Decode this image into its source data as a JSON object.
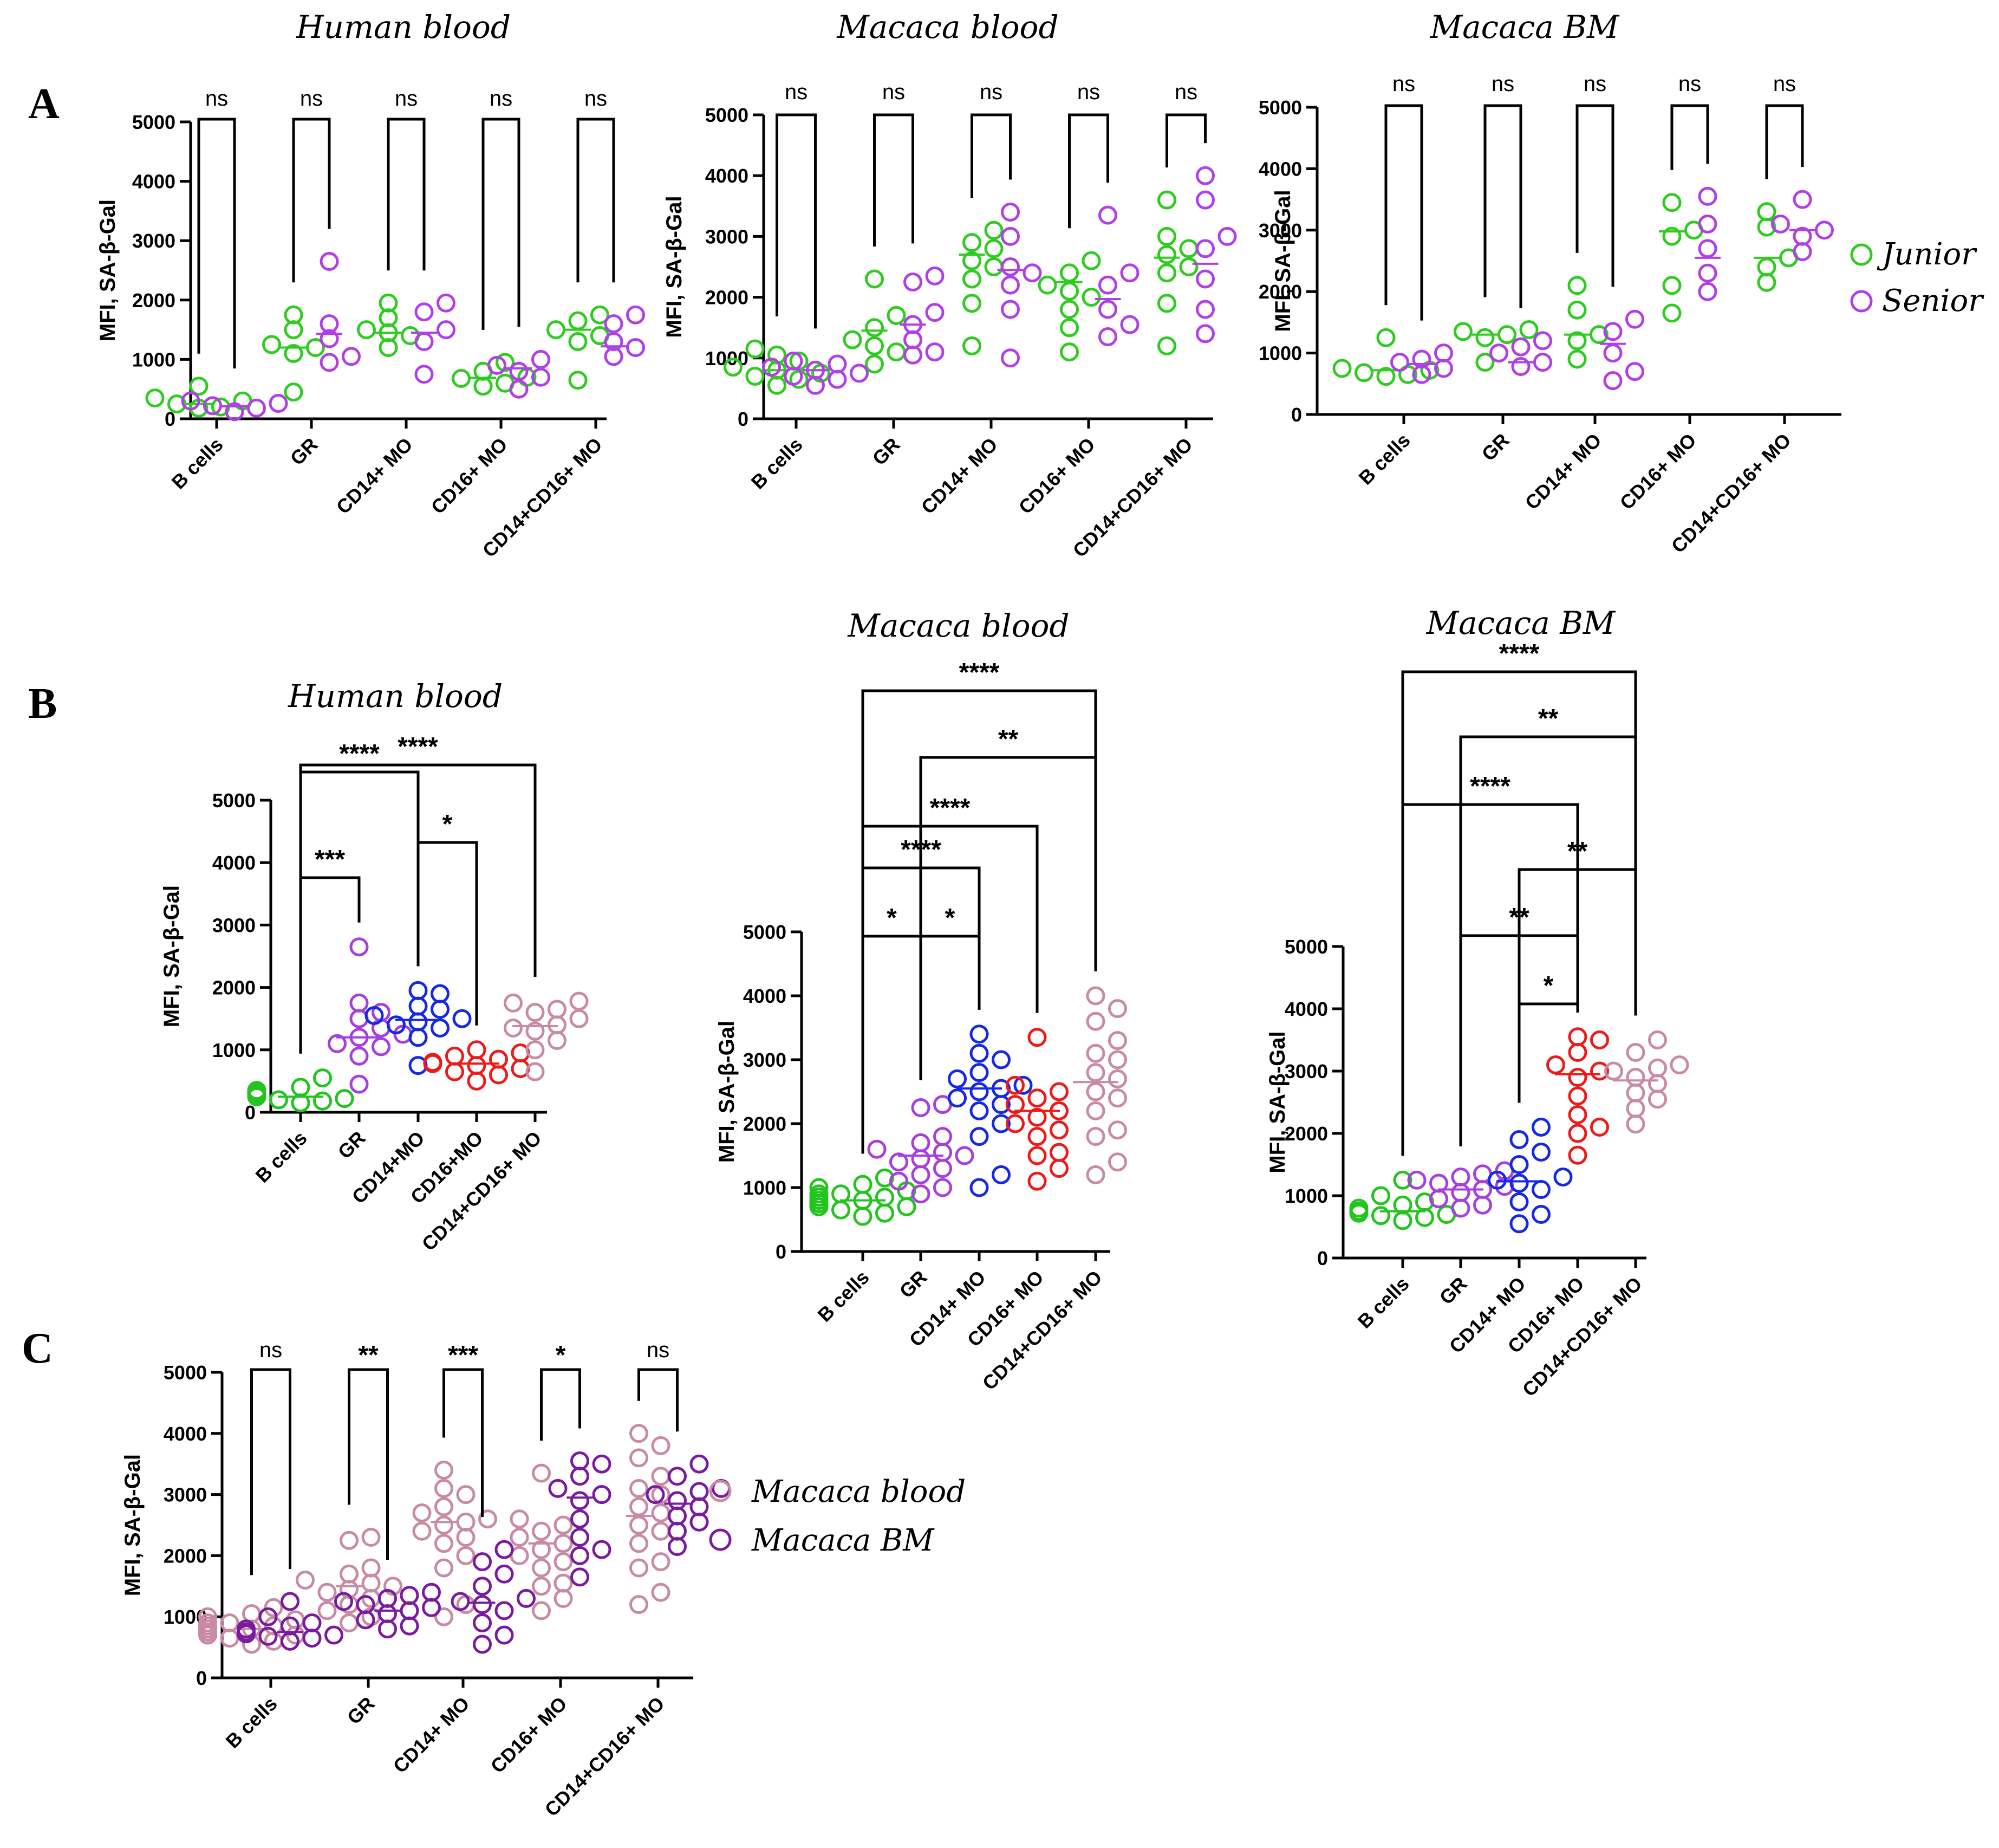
{
  "colors": {
    "junior": "#2ecc1f",
    "senior": "#b23ee8",
    "bcells": "#22c41e",
    "gr": "#a63ee0",
    "cd14": "#1428e6",
    "cd16": "#ee1a1a",
    "cd14cd16": "#c98aa3",
    "macaca_blood": "#c98aa3",
    "macaca_bm": "#7a1aa0"
  },
  "panel_labels": [
    "A",
    "B",
    "C"
  ],
  "legend_A": {
    "junior": "Junior",
    "senior": "Senior"
  },
  "legend_C": {
    "blood": "Macaca blood",
    "bm": "Macaca BM"
  },
  "chart_data": [
    {
      "id": "A1",
      "panel": "A",
      "type": "scatter",
      "title": "Human blood",
      "ylabel": "MFI, SA-β-Gal",
      "ylim": [
        0,
        5000
      ],
      "yticks": [
        0,
        1000,
        2000,
        3000,
        4000,
        5000
      ],
      "categories": [
        "B cells",
        "GR",
        "CD14+ MO",
        "CD16+ MO",
        "CD14+CD16+ MO"
      ],
      "groups": [
        "Junior",
        "Senior"
      ],
      "series": [
        {
          "name": "Junior",
          "values": [
            [
              200,
              350,
              550,
              180,
              250,
              300
            ],
            [
              450,
              1100,
              1250,
              1500,
              1750,
              1200
            ],
            [
              1200,
              1400,
              1700,
              1950,
              1450,
              1500
            ],
            [
              550,
              700,
              800,
              950,
              600,
              680
            ],
            [
              650,
              1300,
              1500,
              1750,
              1650,
              1400
            ]
          ],
          "means": [
            250,
            1200,
            1450,
            690,
            1500
          ]
        },
        {
          "name": "Senior",
          "values": [
            [
              120,
              220,
              300,
              180,
              260
            ],
            [
              950,
              1350,
              1600,
              2650,
              1050
            ],
            [
              750,
              1300,
              1800,
              1950,
              1500
            ],
            [
              500,
              800,
              900,
              1000,
              700
            ],
            [
              1050,
              1300,
              1600,
              1750,
              1200
            ]
          ],
          "means": [
            210,
            1430,
            1450,
            850,
            1220
          ]
        }
      ],
      "significance": [
        "ns",
        "ns",
        "ns",
        "ns",
        "ns"
      ]
    },
    {
      "id": "A2",
      "panel": "A",
      "type": "scatter",
      "title": "Macaca blood",
      "ylabel": "MFI, SA-β-Gal",
      "ylim": [
        0,
        5000
      ],
      "yticks": [
        0,
        1000,
        2000,
        3000,
        4000,
        5000
      ],
      "categories": [
        "B cells",
        "GR",
        "CD14+ MO",
        "CD16+ MO",
        "CD14+CD16+ MO"
      ],
      "groups": [
        "Junior",
        "Senior"
      ],
      "series": [
        {
          "name": "Junior",
          "values": [
            [
              550,
              650,
              750,
              850,
              950,
              1050,
              1150,
              700,
              800
            ],
            [
              900,
              1100,
              1300,
              1500,
              1700,
              2300,
              1200
            ],
            [
              1200,
              1900,
              2300,
              2600,
              2800,
              2900,
              3100,
              2500
            ],
            [
              1100,
              1500,
              1800,
              2100,
              2200,
              2400,
              2600,
              2000
            ],
            [
              1200,
              1900,
              2400,
              2700,
              3000,
              3600,
              2800,
              2500
            ]
          ],
          "means": [
            800,
            1450,
            2700,
            2250,
            2650
          ]
        },
        {
          "name": "Senior",
          "values": [
            [
              550,
              650,
              750,
              850,
              950,
              700,
              800,
              900
            ],
            [
              1050,
              1300,
              1550,
              1750,
              2250,
              2350,
              1100
            ],
            [
              1000,
              1800,
              2200,
              2400,
              3000,
              3400,
              2500
            ],
            [
              1350,
              1550,
              2200,
              2400,
              3350,
              1800
            ],
            [
              1400,
              1800,
              2300,
              2800,
              3000,
              3600,
              4000
            ]
          ],
          "means": [
            800,
            1550,
            2450,
            1970,
            2550
          ]
        }
      ],
      "significance": [
        "ns",
        "ns",
        "ns",
        "ns",
        "ns"
      ]
    },
    {
      "id": "A3",
      "panel": "A",
      "type": "scatter",
      "title": "Macaca BM",
      "ylabel": "MFI, SA-β-Gal",
      "ylim": [
        0,
        5000
      ],
      "yticks": [
        0,
        1000,
        2000,
        3000,
        4000,
        5000
      ],
      "categories": [
        "B cells",
        "GR",
        "CD14+ MO",
        "CD16+ MO",
        "CD14+CD16+ MO"
      ],
      "groups": [
        "Junior",
        "Senior"
      ],
      "series": [
        {
          "name": "Junior",
          "values": [
            [
              620,
              680,
              720,
              750,
              1250,
              650
            ],
            [
              850,
              1250,
              1300,
              1350,
              1380
            ],
            [
              900,
              1200,
              1300,
              1700,
              2100
            ],
            [
              1650,
              2100,
              2900,
              3000,
              3450
            ],
            [
              2150,
              2400,
              2550,
              3050,
              3300
            ]
          ],
          "means": [
            720,
            1300,
            1300,
            2980,
            2550
          ]
        },
        {
          "name": "Senior",
          "values": [
            [
              650,
              750,
              900,
              1000,
              850
            ],
            [
              780,
              850,
              1000,
              1100,
              1200
            ],
            [
              550,
              700,
              1000,
              1350,
              1550
            ],
            [
              2000,
              2300,
              2700,
              3100,
              3550
            ],
            [
              2650,
              2900,
              3000,
              3100,
              3500
            ]
          ],
          "means": [
            820,
            850,
            1150,
            2550,
            3000
          ]
        }
      ],
      "significance": [
        "ns",
        "ns",
        "ns",
        "ns",
        "ns"
      ]
    },
    {
      "id": "B1",
      "panel": "B",
      "type": "scatter",
      "title": "Human blood",
      "ylabel": "MFI, SA-β-Gal",
      "ylim": [
        0,
        5000
      ],
      "yticks": [
        0,
        1000,
        2000,
        3000,
        4000,
        5000
      ],
      "categories": [
        "B cells",
        "GR",
        "CD14+MO",
        "CD16+MO",
        "CD14+CD16+ MO"
      ],
      "values": [
        [
          150,
          200,
          250,
          300,
          350,
          400,
          550,
          180,
          220,
          280,
          320
        ],
        [
          450,
          900,
          1050,
          1100,
          1200,
          1250,
          1350,
          1500,
          1600,
          1750,
          2650
        ],
        [
          750,
          1200,
          1350,
          1400,
          1500,
          1550,
          1650,
          1700,
          1900,
          1950,
          1450
        ],
        [
          500,
          600,
          650,
          700,
          750,
          800,
          850,
          900,
          950,
          1000,
          780
        ],
        [
          650,
          1000,
          1150,
          1300,
          1400,
          1500,
          1600,
          1650,
          1750,
          1780,
          1350
        ]
      ],
      "means": [
        250,
        1200,
        1480,
        780,
        1380
      ],
      "comparisons": [
        {
          "from": 0,
          "to": 1,
          "label": "***"
        },
        {
          "from": 2,
          "to": 3,
          "label": "*"
        },
        {
          "from": 0,
          "to": 2,
          "label": "****"
        },
        {
          "from": 0,
          "to": 4,
          "label": "****"
        }
      ]
    },
    {
      "id": "B2",
      "panel": "B",
      "type": "scatter",
      "title": "Macaca blood",
      "ylabel": "MFI, SA-β-Gal",
      "ylim": [
        0,
        5000
      ],
      "yticks": [
        0,
        1000,
        2000,
        3000,
        4000,
        5000
      ],
      "categories": [
        "B cells",
        "GR",
        "CD14+ MO",
        "CD16+ MO",
        "CD14+CD16+ MO"
      ],
      "values": [
        [
          550,
          600,
          650,
          700,
          750,
          800,
          850,
          900,
          950,
          1000,
          1050,
          1150,
          700,
          750,
          800,
          850,
          900
        ],
        [
          900,
          1000,
          1100,
          1200,
          1300,
          1400,
          1500,
          1550,
          1600,
          1700,
          1800,
          2250,
          2300,
          1450
        ],
        [
          1000,
          1200,
          1800,
          2000,
          2200,
          2300,
          2400,
          2500,
          2600,
          2700,
          2800,
          3000,
          3100,
          3400,
          2550
        ],
        [
          1100,
          1300,
          1500,
          1550,
          1800,
          2000,
          2100,
          2200,
          2300,
          2400,
          2500,
          2600,
          3350,
          1900
        ],
        [
          1200,
          1400,
          1800,
          1900,
          2200,
          2400,
          2500,
          2700,
          2800,
          3000,
          3100,
          3300,
          3600,
          3800,
          4000
        ]
      ],
      "means": [
        800,
        1500,
        2550,
        2200,
        2650
      ],
      "comparisons": [
        {
          "from": 0,
          "to": 1,
          "label": "*"
        },
        {
          "from": 1,
          "to": 2,
          "label": "*"
        },
        {
          "from": 0,
          "to": 2,
          "label": "****"
        },
        {
          "from": 0,
          "to": 3,
          "label": "****"
        },
        {
          "from": 1,
          "to": 4,
          "label": "**"
        },
        {
          "from": 0,
          "to": 4,
          "label": "****"
        }
      ]
    },
    {
      "id": "B3",
      "panel": "B",
      "type": "scatter",
      "title": "Macaca BM",
      "ylabel": "MFI, SA-β-Gal",
      "ylim": [
        0,
        5000
      ],
      "yticks": [
        0,
        1000,
        2000,
        3000,
        4000,
        5000
      ],
      "categories": [
        "B cells",
        "GR",
        "CD14+ MO",
        "CD16+ MO",
        "CD14+CD16+ MO"
      ],
      "values": [
        [
          600,
          650,
          700,
          750,
          800,
          850,
          900,
          1000,
          1250,
          680,
          720
        ],
        [
          800,
          850,
          950,
          1050,
          1150,
          1250,
          1300,
          1350,
          1400,
          1100,
          1200
        ],
        [
          550,
          700,
          900,
          1100,
          1200,
          1300,
          1500,
          1700,
          1900,
          2100,
          1250
        ],
        [
          1650,
          2000,
          2100,
          2300,
          2600,
          2900,
          3000,
          3100,
          3300,
          3500,
          3550
        ],
        [
          2150,
          2400,
          2550,
          2650,
          2800,
          2900,
          3000,
          3050,
          3100,
          3300,
          3500
        ]
      ],
      "means": [
        750,
        1100,
        1230,
        2950,
        2850
      ],
      "comparisons": [
        {
          "from": 2,
          "to": 3,
          "label": "*"
        },
        {
          "from": 1,
          "to": 3,
          "label": "**"
        },
        {
          "from": 2,
          "to": 4,
          "label": "**"
        },
        {
          "from": 0,
          "to": 3,
          "label": "****"
        },
        {
          "from": 1,
          "to": 4,
          "label": "**"
        },
        {
          "from": 0,
          "to": 4,
          "label": "****"
        }
      ]
    },
    {
      "id": "C",
      "panel": "C",
      "type": "scatter",
      "ylabel": "MFI, SA-β-Gal",
      "ylim": [
        0,
        5000
      ],
      "yticks": [
        0,
        1000,
        2000,
        3000,
        4000,
        5000
      ],
      "categories": [
        "B cells",
        "GR",
        "CD14+ MO",
        "CD16+ MO",
        "CD14+CD16+ MO"
      ],
      "groups": [
        "Macaca blood",
        "Macaca BM"
      ],
      "series": [
        {
          "name": "Macaca blood",
          "values": [
            [
              550,
              600,
              650,
              700,
              750,
              800,
              850,
              900,
              950,
              1000,
              1050,
              1150,
              700,
              750,
              800,
              850,
              900
            ],
            [
              900,
              1000,
              1100,
              1200,
              1300,
              1400,
              1500,
              1550,
              1600,
              1700,
              1800,
              2250,
              2300,
              1450
            ],
            [
              1000,
              1200,
              1800,
              2000,
              2200,
              2300,
              2400,
              2500,
              2600,
              2700,
              2800,
              3000,
              3100,
              3400,
              2550
            ],
            [
              1100,
              1300,
              1500,
              1550,
              1800,
              2000,
              2100,
              2200,
              2300,
              2400,
              2500,
              2600,
              3350,
              1900
            ],
            [
              1200,
              1400,
              1800,
              1900,
              2200,
              2400,
              2500,
              2700,
              2800,
              3000,
              3100,
              3300,
              3600,
              3800,
              4000
            ]
          ],
          "means": [
            800,
            1500,
            2550,
            2200,
            2650
          ]
        },
        {
          "name": "Macaca BM",
          "values": [
            [
              600,
              650,
              700,
              750,
              800,
              850,
              900,
              1000,
              1250,
              680,
              720
            ],
            [
              800,
              850,
              950,
              1050,
              1150,
              1250,
              1300,
              1350,
              1400,
              1100,
              1200
            ],
            [
              550,
              700,
              900,
              1100,
              1200,
              1300,
              1500,
              1700,
              1900,
              2100,
              1250
            ],
            [
              1650,
              2000,
              2100,
              2300,
              2600,
              2900,
              3000,
              3100,
              3300,
              3500,
              3550
            ],
            [
              2150,
              2400,
              2550,
              2650,
              2800,
              2900,
              3000,
              3050,
              3100,
              3300,
              3500
            ]
          ],
          "means": [
            750,
            1100,
            1230,
            2950,
            2850
          ]
        }
      ],
      "significance": [
        "ns",
        "**",
        "***",
        "*",
        "ns"
      ]
    }
  ]
}
